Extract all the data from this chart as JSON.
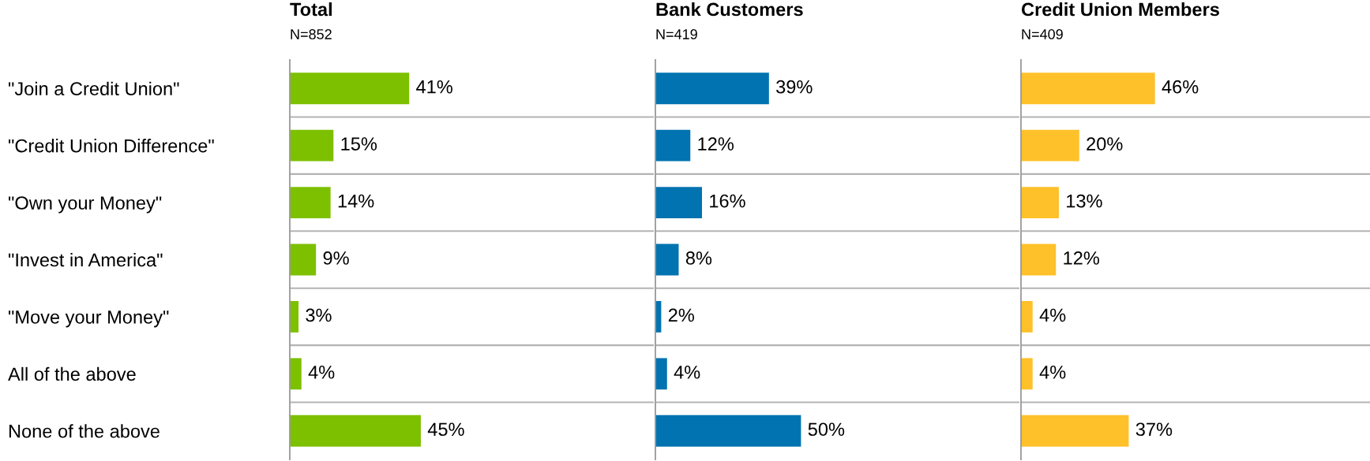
{
  "chart_data": [
    {
      "type": "bar",
      "orientation": "horizontal",
      "title": "Total",
      "subtitle": "N=852",
      "categories": [
        "\"Join a Credit Union\"",
        "\"Credit Union Difference\"",
        "\"Own your Money\"",
        "\"Invest in America\"",
        "\"Move your Money\"",
        "All of the above",
        "None of the above"
      ],
      "values": [
        41,
        15,
        14,
        9,
        3,
        4,
        45
      ],
      "value_labels": [
        "41%",
        "15%",
        "14%",
        "9%",
        "3%",
        "4%",
        "45%"
      ],
      "color": "#7dc000",
      "grid": "y",
      "tick_labels": "y"
    },
    {
      "type": "bar",
      "orientation": "horizontal",
      "title": "Bank Customers",
      "subtitle": "N=419",
      "categories": [
        null,
        null,
        null,
        null,
        null,
        null,
        null
      ],
      "values": [
        39,
        12,
        16,
        8,
        2,
        4,
        50
      ],
      "value_labels": [
        "39%",
        "12%",
        "16%",
        "8%",
        "2%",
        "4%",
        "50%"
      ],
      "color": "#0073b0",
      "grid": "y",
      "tick_labels": false
    },
    {
      "type": "bar",
      "orientation": "horizontal",
      "title": "Credit Union Members",
      "subtitle": "N=409",
      "categories": [
        null,
        null,
        null,
        null,
        null,
        null,
        null
      ],
      "values": [
        46,
        20,
        13,
        12,
        4,
        4,
        37
      ],
      "value_labels": [
        "46%",
        "20%",
        "13%",
        "12%",
        "4%",
        "4%",
        "37%"
      ],
      "color": "#ffc12a",
      "grid": "y",
      "tick_labels": false
    }
  ]
}
